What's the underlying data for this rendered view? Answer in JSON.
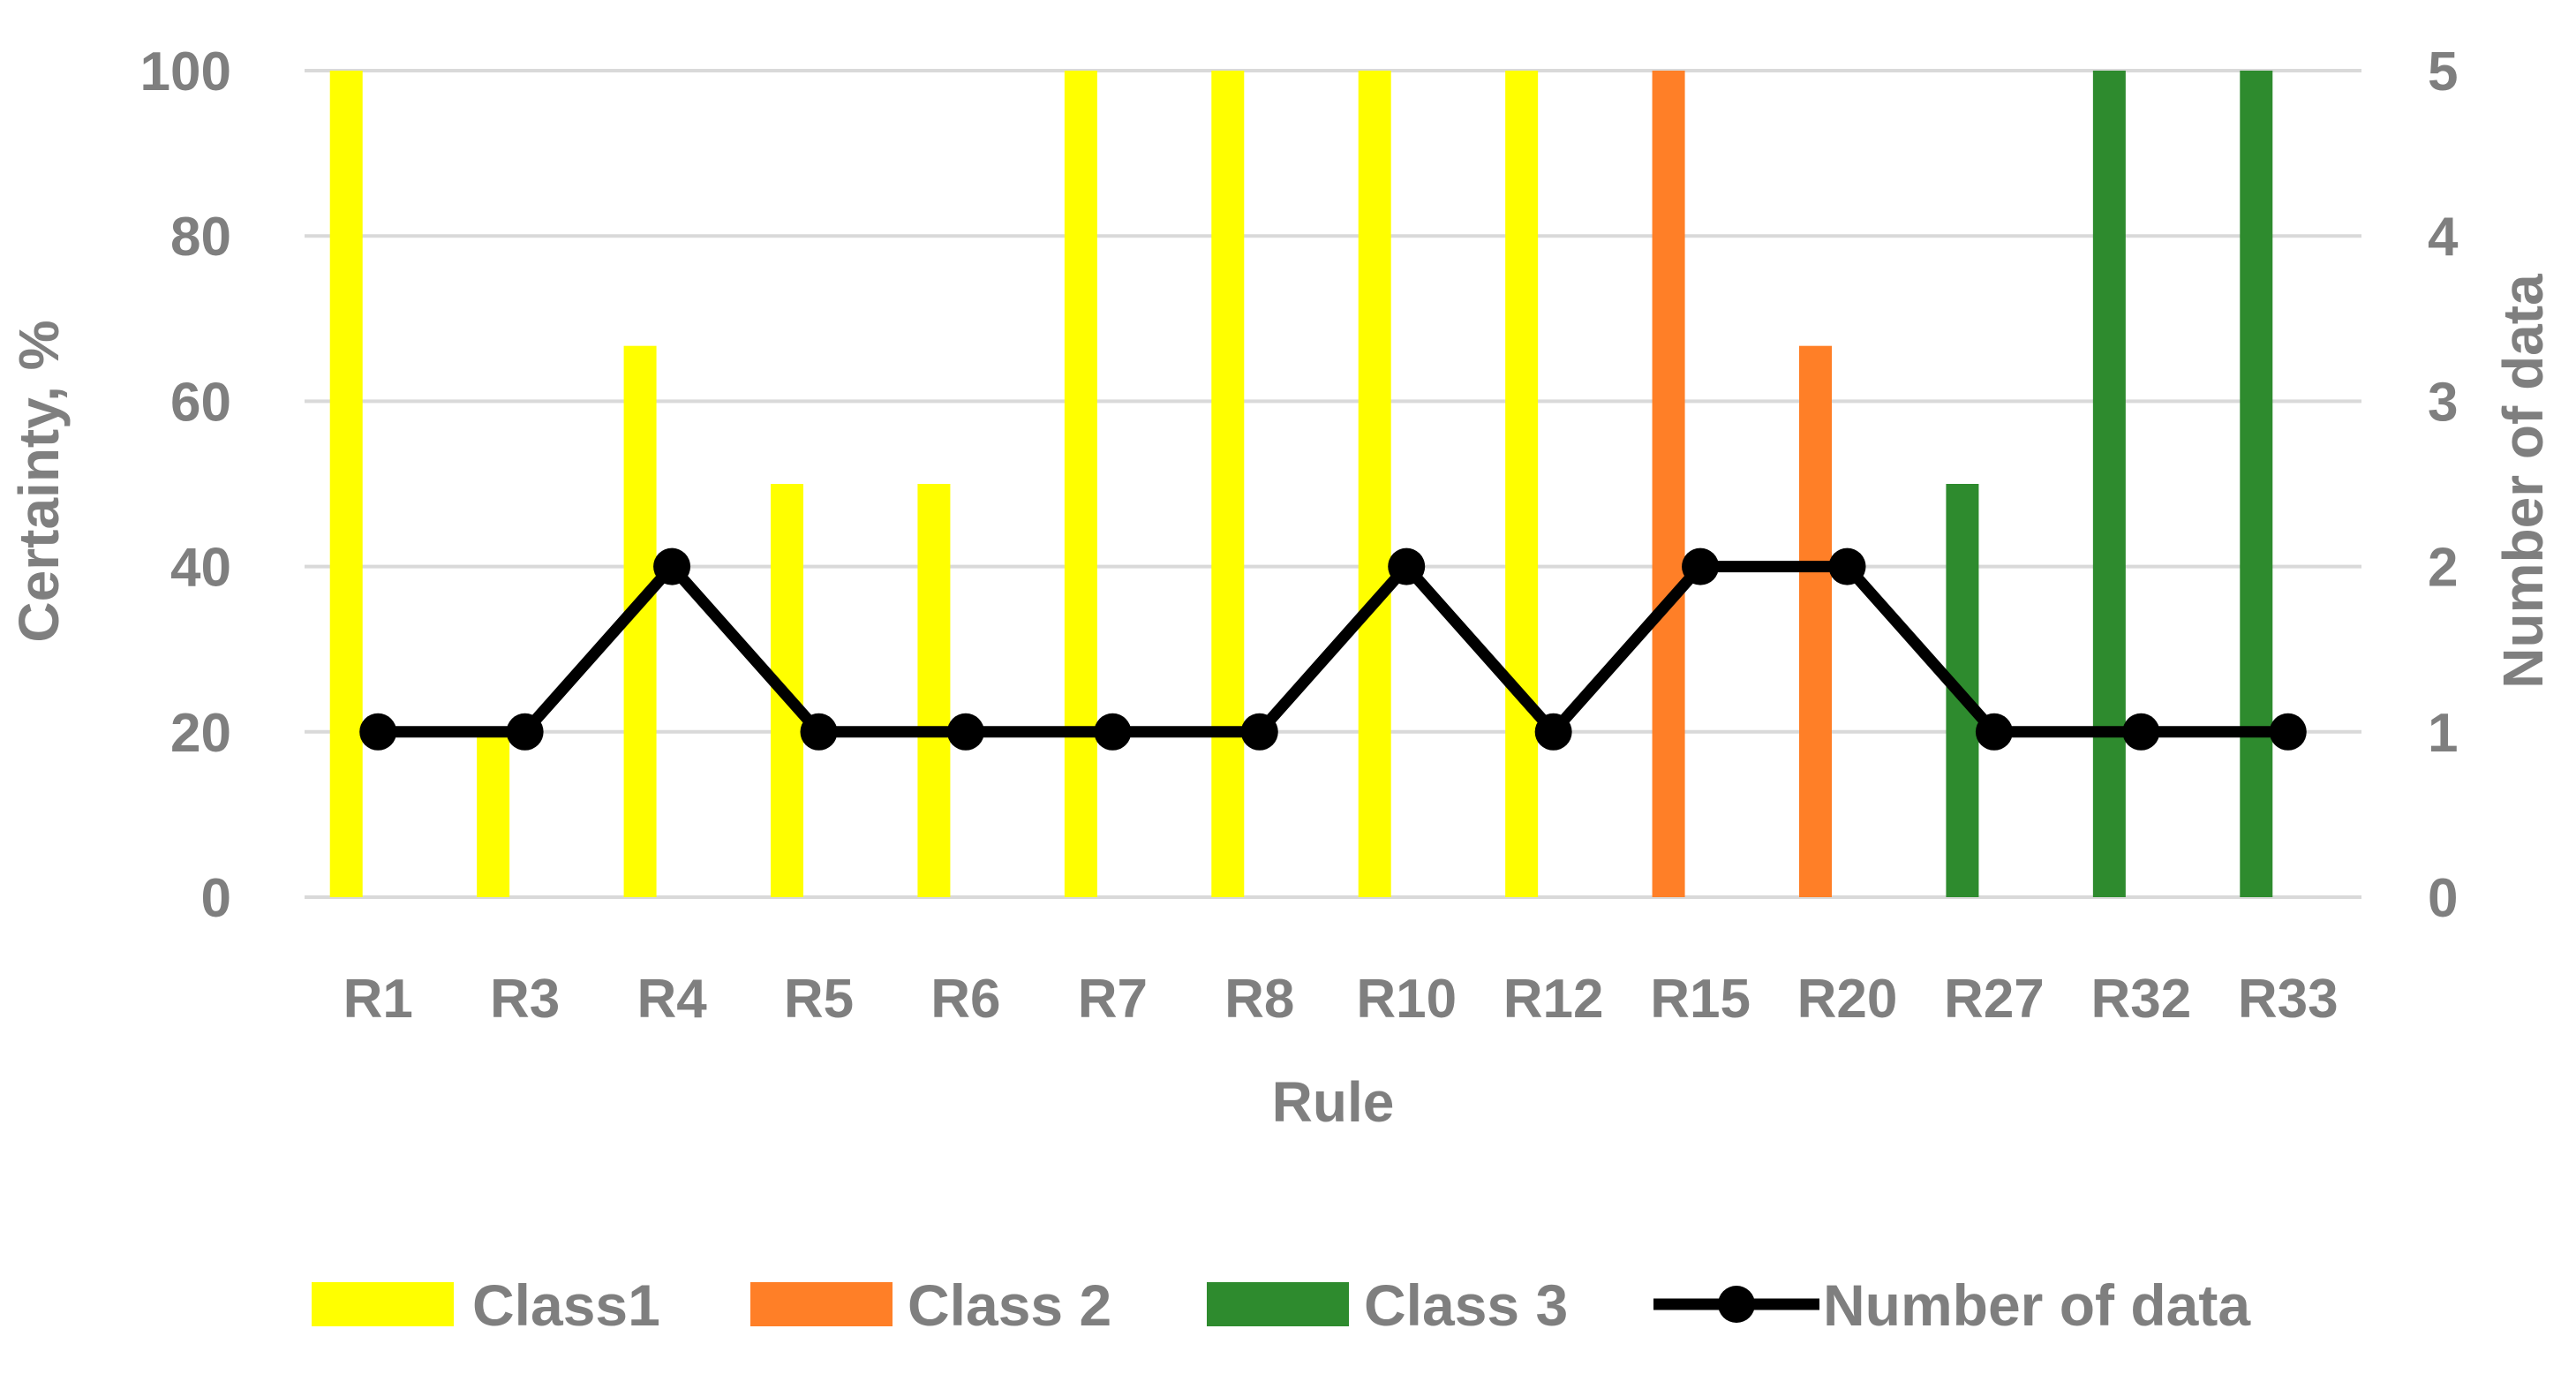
{
  "chart_data": {
    "type": "bar",
    "categories": [
      "R1",
      "R3",
      "R4",
      "R5",
      "R6",
      "R7",
      "R8",
      "R10",
      "R12",
      "R15",
      "R20",
      "R27",
      "R32",
      "R33"
    ],
    "series": [
      {
        "name": "Class1",
        "type": "bar",
        "axis": "left",
        "color": "#ffff00",
        "values": [
          100,
          20,
          66.7,
          50,
          50,
          100,
          100,
          100,
          100,
          null,
          null,
          null,
          null,
          null
        ]
      },
      {
        "name": "Class 2",
        "type": "bar",
        "axis": "left",
        "color": "#ff7f27",
        "values": [
          null,
          null,
          null,
          null,
          null,
          null,
          null,
          null,
          null,
          100,
          66.7,
          null,
          null,
          null
        ]
      },
      {
        "name": "Class 3",
        "type": "bar",
        "axis": "left",
        "color": "#2e8b2e",
        "values": [
          null,
          null,
          null,
          null,
          null,
          null,
          null,
          null,
          null,
          null,
          null,
          50,
          100,
          100
        ]
      },
      {
        "name": "Number of data",
        "type": "line",
        "axis": "right",
        "color": "#000000",
        "values": [
          1,
          1,
          2,
          1,
          1,
          1,
          1,
          2,
          1,
          2,
          2,
          1,
          1,
          1
        ]
      }
    ],
    "xlabel": "Rule",
    "ylabel": "Certainty, %",
    "y2label": "Number of data",
    "ylim": [
      0,
      100
    ],
    "y2lim": [
      0,
      5
    ],
    "yticks": [
      "0",
      "20",
      "40",
      "60",
      "80",
      "100"
    ],
    "y2ticks": [
      "0",
      "1",
      "2",
      "3",
      "4",
      "5"
    ],
    "grid": true,
    "legend_position": "bottom"
  }
}
